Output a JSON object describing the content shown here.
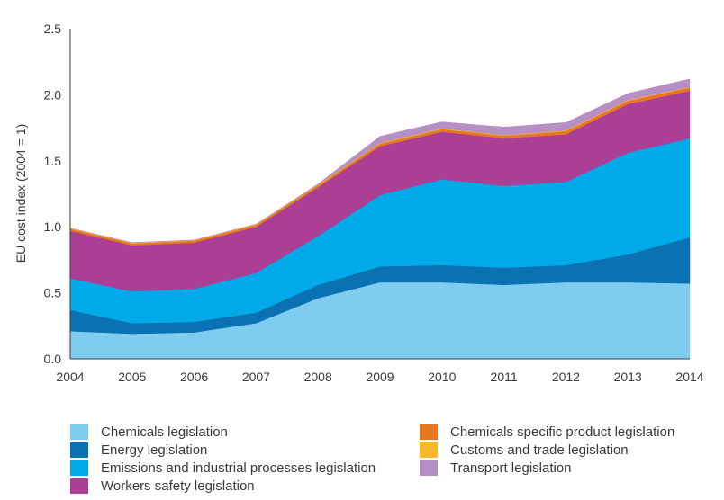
{
  "chart_data": {
    "type": "area",
    "stacked": true,
    "title": "",
    "xlabel": "",
    "ylabel": "EU cost index (2004 = 1)",
    "ylim": [
      0,
      2.5
    ],
    "yticks": [
      "0.0",
      "0.5",
      "1.0",
      "1.5",
      "2.0",
      "2.5"
    ],
    "categories": [
      "2004",
      "2005",
      "2006",
      "2007",
      "2008",
      "2009",
      "2010",
      "2011",
      "2012",
      "2013",
      "2014"
    ],
    "series": [
      {
        "name": "Chemicals legislation",
        "color": "#7ecdf1",
        "values": [
          0.21,
          0.19,
          0.2,
          0.27,
          0.46,
          0.58,
          0.58,
          0.56,
          0.58,
          0.58,
          0.57
        ]
      },
      {
        "name": "Energy legislation",
        "color": "#0a71b3",
        "values": [
          0.16,
          0.08,
          0.08,
          0.08,
          0.1,
          0.12,
          0.13,
          0.13,
          0.13,
          0.21,
          0.35
        ]
      },
      {
        "name": "Emissions and industrial processes legislation",
        "color": "#00a9e7",
        "values": [
          0.24,
          0.24,
          0.25,
          0.3,
          0.37,
          0.54,
          0.65,
          0.62,
          0.63,
          0.77,
          0.75
        ]
      },
      {
        "name": "Workers safety legislation",
        "color": "#ab3f96",
        "values": [
          0.36,
          0.35,
          0.35,
          0.35,
          0.37,
          0.37,
          0.36,
          0.36,
          0.36,
          0.37,
          0.36
        ]
      },
      {
        "name": "Chemicals specific product legislation",
        "color": "#e87722",
        "values": [
          0.015,
          0.015,
          0.015,
          0.015,
          0.015,
          0.02,
          0.02,
          0.02,
          0.025,
          0.025,
          0.025
        ]
      },
      {
        "name": "Customs and trade legislation",
        "color": "#f6b92c",
        "values": [
          0.005,
          0.005,
          0.005,
          0.005,
          0.005,
          0.005,
          0.005,
          0.005,
          0.005,
          0.005,
          0.005
        ]
      },
      {
        "name": "Transport legislation",
        "color": "#b68fc4",
        "values": [
          0.0,
          0.0,
          0.0,
          0.0,
          0.005,
          0.05,
          0.05,
          0.06,
          0.06,
          0.05,
          0.06
        ]
      }
    ],
    "legend": {
      "left": [
        "Chemicals legislation",
        "Energy legislation",
        "Emissions and industrial processes legislation",
        "Workers safety legislation"
      ],
      "right": [
        "Chemicals specific product legislation",
        "Customs and trade legislation",
        "Transport legislation"
      ]
    }
  }
}
